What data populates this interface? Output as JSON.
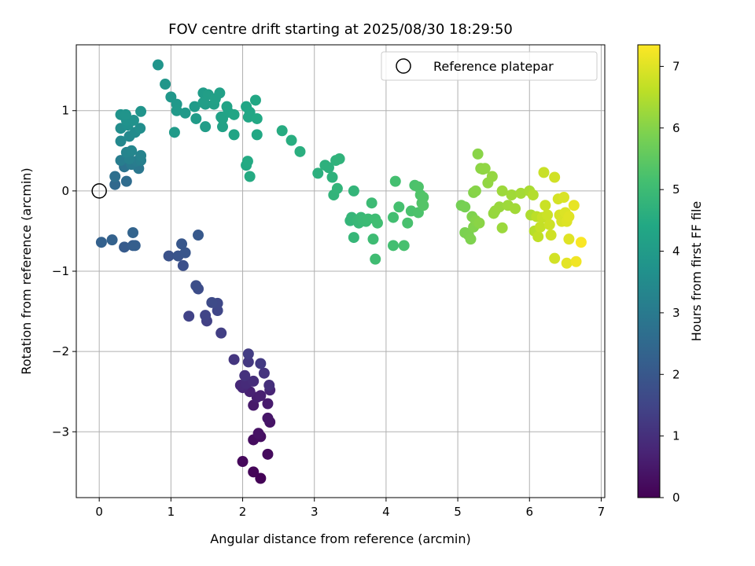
{
  "chart_data": {
    "type": "scatter",
    "title": "FOV centre drift starting at 2025/08/30 18:29:50",
    "xlabel": "Angular distance from reference (arcmin)",
    "ylabel": "Rotation from reference (arcmin)",
    "xlim": [
      -0.32,
      7.05
    ],
    "ylim": [
      -3.82,
      1.82
    ],
    "xticks": [
      0,
      1,
      2,
      3,
      4,
      5,
      6,
      7
    ],
    "yticks": [
      -3,
      -2,
      -1,
      0,
      1
    ],
    "grid": true,
    "legend": {
      "location": "upper-right",
      "entries": [
        "Reference platepar"
      ]
    },
    "reference_point": {
      "x": 0.0,
      "y": 0.0,
      "label": "Reference platepar"
    },
    "colorbar": {
      "label": "Hours from first FF file",
      "colormap": "viridis",
      "range": [
        0,
        7.35
      ],
      "ticks": [
        0,
        1,
        2,
        3,
        4,
        5,
        6,
        7
      ]
    },
    "points": [
      {
        "x": 2.25,
        "y": -3.58,
        "h": 0.05
      },
      {
        "x": 2.15,
        "y": -3.5,
        "h": 0.1
      },
      {
        "x": 2.0,
        "y": -3.37,
        "h": 0.15
      },
      {
        "x": 2.35,
        "y": -3.28,
        "h": 0.2
      },
      {
        "x": 2.15,
        "y": -3.1,
        "h": 0.25
      },
      {
        "x": 2.25,
        "y": -3.06,
        "h": 0.3
      },
      {
        "x": 2.22,
        "y": -3.02,
        "h": 0.35
      },
      {
        "x": 2.38,
        "y": -2.88,
        "h": 0.4
      },
      {
        "x": 2.35,
        "y": -2.83,
        "h": 0.45
      },
      {
        "x": 2.15,
        "y": -2.67,
        "h": 0.5
      },
      {
        "x": 2.35,
        "y": -2.65,
        "h": 0.55
      },
      {
        "x": 2.2,
        "y": -2.57,
        "h": 0.6
      },
      {
        "x": 2.25,
        "y": -2.55,
        "h": 0.65
      },
      {
        "x": 2.1,
        "y": -2.5,
        "h": 0.7
      },
      {
        "x": 2.38,
        "y": -2.48,
        "h": 0.75
      },
      {
        "x": 2.0,
        "y": -2.45,
        "h": 0.8
      },
      {
        "x": 1.97,
        "y": -2.42,
        "h": 0.85
      },
      {
        "x": 2.05,
        "y": -2.4,
        "h": 0.9
      },
      {
        "x": 2.15,
        "y": -2.37,
        "h": 0.95
      },
      {
        "x": 2.37,
        "y": -2.42,
        "h": 1.0
      },
      {
        "x": 2.03,
        "y": -2.3,
        "h": 1.05
      },
      {
        "x": 2.3,
        "y": -2.27,
        "h": 1.1
      },
      {
        "x": 1.88,
        "y": -2.1,
        "h": 1.15
      },
      {
        "x": 2.08,
        "y": -2.13,
        "h": 1.2
      },
      {
        "x": 2.25,
        "y": -2.15,
        "h": 1.25
      },
      {
        "x": 2.08,
        "y": -2.03,
        "h": 1.3
      },
      {
        "x": 1.7,
        "y": -1.77,
        "h": 1.35
      },
      {
        "x": 1.5,
        "y": -1.62,
        "h": 1.4
      },
      {
        "x": 1.25,
        "y": -1.56,
        "h": 1.45
      },
      {
        "x": 1.48,
        "y": -1.55,
        "h": 1.5
      },
      {
        "x": 1.65,
        "y": -1.49,
        "h": 1.55
      },
      {
        "x": 1.65,
        "y": -1.4,
        "h": 1.6
      },
      {
        "x": 1.57,
        "y": -1.39,
        "h": 1.65
      },
      {
        "x": 1.38,
        "y": -1.22,
        "h": 1.7
      },
      {
        "x": 1.35,
        "y": -1.18,
        "h": 1.75
      },
      {
        "x": 1.17,
        "y": -0.93,
        "h": 1.8
      },
      {
        "x": 0.97,
        "y": -0.81,
        "h": 1.85
      },
      {
        "x": 1.1,
        "y": -0.81,
        "h": 1.9
      },
      {
        "x": 1.2,
        "y": -0.77,
        "h": 1.95
      },
      {
        "x": 1.15,
        "y": -0.66,
        "h": 2.0
      },
      {
        "x": 1.38,
        "y": -0.55,
        "h": 2.05
      },
      {
        "x": 0.35,
        "y": -0.7,
        "h": 2.1
      },
      {
        "x": 0.47,
        "y": -0.68,
        "h": 2.15
      },
      {
        "x": 0.5,
        "y": -0.68,
        "h": 2.2
      },
      {
        "x": 0.03,
        "y": -0.64,
        "h": 2.25
      },
      {
        "x": 0.18,
        "y": -0.61,
        "h": 2.3
      },
      {
        "x": 0.47,
        "y": -0.52,
        "h": 2.35
      },
      {
        "x": 0.22,
        "y": 0.08,
        "h": 2.5
      },
      {
        "x": 0.38,
        "y": 0.12,
        "h": 2.6
      },
      {
        "x": 0.22,
        "y": 0.18,
        "h": 2.7
      },
      {
        "x": 0.35,
        "y": 0.3,
        "h": 2.8
      },
      {
        "x": 0.55,
        "y": 0.28,
        "h": 2.9
      },
      {
        "x": 0.45,
        "y": 0.33,
        "h": 3.0
      },
      {
        "x": 0.52,
        "y": 0.37,
        "h": 3.05
      },
      {
        "x": 0.3,
        "y": 0.38,
        "h": 3.1
      },
      {
        "x": 0.58,
        "y": 0.38,
        "h": 3.15
      },
      {
        "x": 0.42,
        "y": 0.4,
        "h": 3.2
      },
      {
        "x": 0.58,
        "y": 0.44,
        "h": 3.25
      },
      {
        "x": 0.38,
        "y": 0.48,
        "h": 3.3
      },
      {
        "x": 0.45,
        "y": 0.5,
        "h": 3.35
      },
      {
        "x": 0.3,
        "y": 0.62,
        "h": 3.4
      },
      {
        "x": 0.42,
        "y": 0.68,
        "h": 3.45
      },
      {
        "x": 0.5,
        "y": 0.73,
        "h": 3.5
      },
      {
        "x": 0.3,
        "y": 0.78,
        "h": 3.55
      },
      {
        "x": 0.57,
        "y": 0.78,
        "h": 3.6
      },
      {
        "x": 0.4,
        "y": 0.82,
        "h": 3.65
      },
      {
        "x": 0.38,
        "y": 0.88,
        "h": 3.7
      },
      {
        "x": 0.48,
        "y": 0.88,
        "h": 3.72
      },
      {
        "x": 0.3,
        "y": 0.95,
        "h": 3.74
      },
      {
        "x": 0.37,
        "y": 0.95,
        "h": 3.76
      },
      {
        "x": 0.58,
        "y": 0.99,
        "h": 3.78
      },
      {
        "x": 0.82,
        "y": 1.57,
        "h": 3.8
      },
      {
        "x": 0.92,
        "y": 1.33,
        "h": 3.85
      },
      {
        "x": 1.0,
        "y": 1.17,
        "h": 3.88
      },
      {
        "x": 1.08,
        "y": 1.08,
        "h": 3.9
      },
      {
        "x": 1.08,
        "y": 1.0,
        "h": 3.92
      },
      {
        "x": 1.2,
        "y": 0.97,
        "h": 3.94
      },
      {
        "x": 1.05,
        "y": 0.73,
        "h": 3.96
      },
      {
        "x": 1.33,
        "y": 1.05,
        "h": 3.98
      },
      {
        "x": 1.35,
        "y": 0.9,
        "h": 4.0
      },
      {
        "x": 1.48,
        "y": 1.08,
        "h": 4.02
      },
      {
        "x": 1.45,
        "y": 1.22,
        "h": 4.04
      },
      {
        "x": 1.48,
        "y": 0.8,
        "h": 4.06
      },
      {
        "x": 1.45,
        "y": 1.1,
        "h": 4.08
      },
      {
        "x": 1.52,
        "y": 1.2,
        "h": 4.1
      },
      {
        "x": 1.6,
        "y": 1.08,
        "h": 4.12
      },
      {
        "x": 1.62,
        "y": 1.15,
        "h": 4.14
      },
      {
        "x": 1.68,
        "y": 1.22,
        "h": 4.16
      },
      {
        "x": 1.7,
        "y": 0.92,
        "h": 4.18
      },
      {
        "x": 1.72,
        "y": 0.8,
        "h": 4.2
      },
      {
        "x": 1.72,
        "y": 0.9,
        "h": 4.22
      },
      {
        "x": 1.78,
        "y": 1.05,
        "h": 4.24
      },
      {
        "x": 1.8,
        "y": 0.98,
        "h": 4.26
      },
      {
        "x": 1.88,
        "y": 0.7,
        "h": 4.28
      },
      {
        "x": 1.88,
        "y": 0.95,
        "h": 4.3
      },
      {
        "x": 2.05,
        "y": 1.05,
        "h": 4.32
      },
      {
        "x": 2.08,
        "y": 0.92,
        "h": 4.34
      },
      {
        "x": 2.1,
        "y": 0.98,
        "h": 4.36
      },
      {
        "x": 2.18,
        "y": 1.13,
        "h": 4.38
      },
      {
        "x": 2.2,
        "y": 0.9,
        "h": 4.4
      },
      {
        "x": 2.2,
        "y": 0.7,
        "h": 4.42
      },
      {
        "x": 2.05,
        "y": 0.32,
        "h": 4.44
      },
      {
        "x": 2.07,
        "y": 0.37,
        "h": 4.46
      },
      {
        "x": 2.1,
        "y": 0.18,
        "h": 4.48
      },
      {
        "x": 2.55,
        "y": 0.75,
        "h": 4.52
      },
      {
        "x": 2.68,
        "y": 0.63,
        "h": 4.56
      },
      {
        "x": 2.8,
        "y": 0.49,
        "h": 4.6
      },
      {
        "x": 3.05,
        "y": 0.22,
        "h": 4.64
      },
      {
        "x": 3.15,
        "y": 0.32,
        "h": 4.66
      },
      {
        "x": 3.2,
        "y": 0.29,
        "h": 4.68
      },
      {
        "x": 3.25,
        "y": 0.17,
        "h": 4.7
      },
      {
        "x": 3.3,
        "y": 0.38,
        "h": 4.72
      },
      {
        "x": 3.35,
        "y": 0.4,
        "h": 4.74
      },
      {
        "x": 3.27,
        "y": -0.05,
        "h": 4.76
      },
      {
        "x": 3.32,
        "y": 0.03,
        "h": 4.78
      },
      {
        "x": 3.55,
        "y": 0.0,
        "h": 4.8
      },
      {
        "x": 3.5,
        "y": -0.37,
        "h": 4.82
      },
      {
        "x": 3.52,
        "y": -0.33,
        "h": 4.84
      },
      {
        "x": 3.55,
        "y": -0.58,
        "h": 4.86
      },
      {
        "x": 3.6,
        "y": -0.37,
        "h": 4.88
      },
      {
        "x": 3.62,
        "y": -0.4,
        "h": 4.9
      },
      {
        "x": 3.65,
        "y": -0.33,
        "h": 4.92
      },
      {
        "x": 3.68,
        "y": -0.37,
        "h": 4.94
      },
      {
        "x": 3.72,
        "y": -0.38,
        "h": 4.96
      },
      {
        "x": 3.75,
        "y": -0.35,
        "h": 4.98
      },
      {
        "x": 3.8,
        "y": -0.15,
        "h": 5.0
      },
      {
        "x": 3.82,
        "y": -0.6,
        "h": 5.02
      },
      {
        "x": 3.85,
        "y": -0.35,
        "h": 5.04
      },
      {
        "x": 3.85,
        "y": -0.85,
        "h": 5.06
      },
      {
        "x": 3.88,
        "y": -0.4,
        "h": 5.08
      },
      {
        "x": 4.1,
        "y": -0.33,
        "h": 5.1
      },
      {
        "x": 4.1,
        "y": -0.68,
        "h": 5.12
      },
      {
        "x": 4.13,
        "y": 0.12,
        "h": 5.14
      },
      {
        "x": 4.18,
        "y": -0.2,
        "h": 5.16
      },
      {
        "x": 4.25,
        "y": -0.68,
        "h": 5.18
      },
      {
        "x": 4.3,
        "y": -0.4,
        "h": 5.2
      },
      {
        "x": 4.35,
        "y": -0.25,
        "h": 5.22
      },
      {
        "x": 4.4,
        "y": 0.07,
        "h": 5.24
      },
      {
        "x": 4.45,
        "y": -0.27,
        "h": 5.26
      },
      {
        "x": 4.45,
        "y": 0.05,
        "h": 5.28
      },
      {
        "x": 4.48,
        "y": -0.05,
        "h": 5.3
      },
      {
        "x": 4.5,
        "y": -0.15,
        "h": 5.32
      },
      {
        "x": 4.52,
        "y": -0.08,
        "h": 5.34
      },
      {
        "x": 4.52,
        "y": -0.18,
        "h": 5.36
      },
      {
        "x": 5.05,
        "y": -0.18,
        "h": 5.8
      },
      {
        "x": 5.1,
        "y": -0.2,
        "h": 5.84
      },
      {
        "x": 5.1,
        "y": -0.52,
        "h": 5.88
      },
      {
        "x": 5.15,
        "y": -0.55,
        "h": 5.9
      },
      {
        "x": 5.18,
        "y": -0.6,
        "h": 5.92
      },
      {
        "x": 5.2,
        "y": -0.32,
        "h": 5.94
      },
      {
        "x": 5.22,
        "y": -0.45,
        "h": 5.96
      },
      {
        "x": 5.22,
        "y": -0.02,
        "h": 5.98
      },
      {
        "x": 5.25,
        "y": -0.37,
        "h": 6.0
      },
      {
        "x": 5.25,
        "y": 0.0,
        "h": 6.02
      },
      {
        "x": 5.28,
        "y": 0.46,
        "h": 6.04
      },
      {
        "x": 5.3,
        "y": -0.4,
        "h": 6.06
      },
      {
        "x": 5.32,
        "y": 0.28,
        "h": 6.08
      },
      {
        "x": 5.35,
        "y": 0.27,
        "h": 6.1
      },
      {
        "x": 5.38,
        "y": 0.28,
        "h": 6.12
      },
      {
        "x": 5.42,
        "y": 0.1,
        "h": 6.14
      },
      {
        "x": 5.48,
        "y": 0.18,
        "h": 6.16
      },
      {
        "x": 5.5,
        "y": -0.28,
        "h": 6.18
      },
      {
        "x": 5.52,
        "y": -0.25,
        "h": 6.2
      },
      {
        "x": 5.58,
        "y": -0.2,
        "h": 6.22
      },
      {
        "x": 5.62,
        "y": -0.46,
        "h": 6.24
      },
      {
        "x": 5.62,
        "y": 0.0,
        "h": 6.26
      },
      {
        "x": 5.7,
        "y": -0.18,
        "h": 6.28
      },
      {
        "x": 5.75,
        "y": -0.05,
        "h": 6.3
      },
      {
        "x": 5.8,
        "y": -0.22,
        "h": 6.32
      },
      {
        "x": 5.88,
        "y": -0.03,
        "h": 6.34
      },
      {
        "x": 6.0,
        "y": 0.0,
        "h": 6.4
      },
      {
        "x": 6.02,
        "y": -0.3,
        "h": 6.45
      },
      {
        "x": 6.05,
        "y": -0.05,
        "h": 6.5
      },
      {
        "x": 6.07,
        "y": -0.5,
        "h": 6.55
      },
      {
        "x": 6.1,
        "y": -0.32,
        "h": 6.6
      },
      {
        "x": 6.12,
        "y": -0.57,
        "h": 6.65
      },
      {
        "x": 6.15,
        "y": -0.45,
        "h": 6.7
      },
      {
        "x": 6.18,
        "y": -0.33,
        "h": 6.72
      },
      {
        "x": 6.2,
        "y": 0.23,
        "h": 6.74
      },
      {
        "x": 6.22,
        "y": -0.18,
        "h": 6.76
      },
      {
        "x": 6.25,
        "y": -0.3,
        "h": 6.78
      },
      {
        "x": 6.28,
        "y": -0.42,
        "h": 6.8
      },
      {
        "x": 6.3,
        "y": -0.55,
        "h": 6.82
      },
      {
        "x": 6.35,
        "y": 0.17,
        "h": 6.84
      },
      {
        "x": 6.35,
        "y": -0.84,
        "h": 6.86
      },
      {
        "x": 6.4,
        "y": -0.1,
        "h": 6.88
      },
      {
        "x": 6.42,
        "y": -0.3,
        "h": 6.9
      },
      {
        "x": 6.45,
        "y": -0.38,
        "h": 6.92
      },
      {
        "x": 6.48,
        "y": -0.08,
        "h": 6.94
      },
      {
        "x": 6.5,
        "y": -0.27,
        "h": 6.96
      },
      {
        "x": 6.52,
        "y": -0.38,
        "h": 6.98
      },
      {
        "x": 6.55,
        "y": -0.6,
        "h": 7.0
      },
      {
        "x": 6.55,
        "y": -0.32,
        "h": 7.02
      },
      {
        "x": 6.52,
        "y": -0.9,
        "h": 7.05
      },
      {
        "x": 6.62,
        "y": -0.18,
        "h": 7.1
      },
      {
        "x": 6.65,
        "y": -0.88,
        "h": 7.2
      },
      {
        "x": 6.72,
        "y": -0.64,
        "h": 7.3
      }
    ]
  }
}
